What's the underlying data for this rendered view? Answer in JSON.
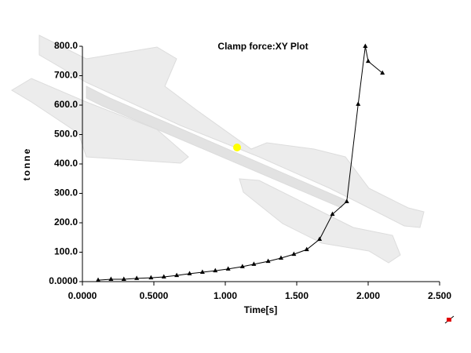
{
  "chart_data": {
    "type": "line",
    "title": "Clamp force:XY Plot",
    "x_label": "Time[s]",
    "y_label": "tonne",
    "color": "#000000",
    "x": [
      0.11,
      0.2,
      0.29,
      0.38,
      0.48,
      0.57,
      0.66,
      0.75,
      0.84,
      0.93,
      1.02,
      1.12,
      1.2,
      1.3,
      1.39,
      1.48,
      1.57,
      1.66,
      1.75,
      1.85,
      1.93,
      1.98,
      2.0,
      2.1
    ],
    "values": [
      5,
      8,
      8,
      11,
      13,
      16,
      21,
      27,
      32,
      37,
      43,
      51,
      59,
      69,
      80,
      93,
      109,
      144,
      229,
      272,
      603,
      800,
      749,
      709
    ],
    "xlim": [
      0,
      2.5
    ],
    "ylim": [
      0,
      800
    ],
    "xticks": [
      {
        "value": 0,
        "label": "0.0000"
      },
      {
        "value": 0.5,
        "label": "0.5000"
      },
      {
        "value": 1,
        "label": "1.000"
      },
      {
        "value": 1.5,
        "label": "1.500"
      },
      {
        "value": 2,
        "label": "2.000"
      },
      {
        "value": 2.5,
        "label": "2.500"
      }
    ],
    "yticks": [
      {
        "value": 0,
        "label": "0.0000"
      },
      {
        "value": 100,
        "label": "100.0"
      },
      {
        "value": 200,
        "label": "200.0"
      },
      {
        "value": 300,
        "label": "300.0"
      },
      {
        "value": 400,
        "label": "400.0"
      },
      {
        "value": 500,
        "label": "500.0"
      },
      {
        "value": 600,
        "label": "600.0"
      },
      {
        "value": 700,
        "label": "700.0"
      },
      {
        "value": 800,
        "label": "800.0"
      }
    ]
  }
}
